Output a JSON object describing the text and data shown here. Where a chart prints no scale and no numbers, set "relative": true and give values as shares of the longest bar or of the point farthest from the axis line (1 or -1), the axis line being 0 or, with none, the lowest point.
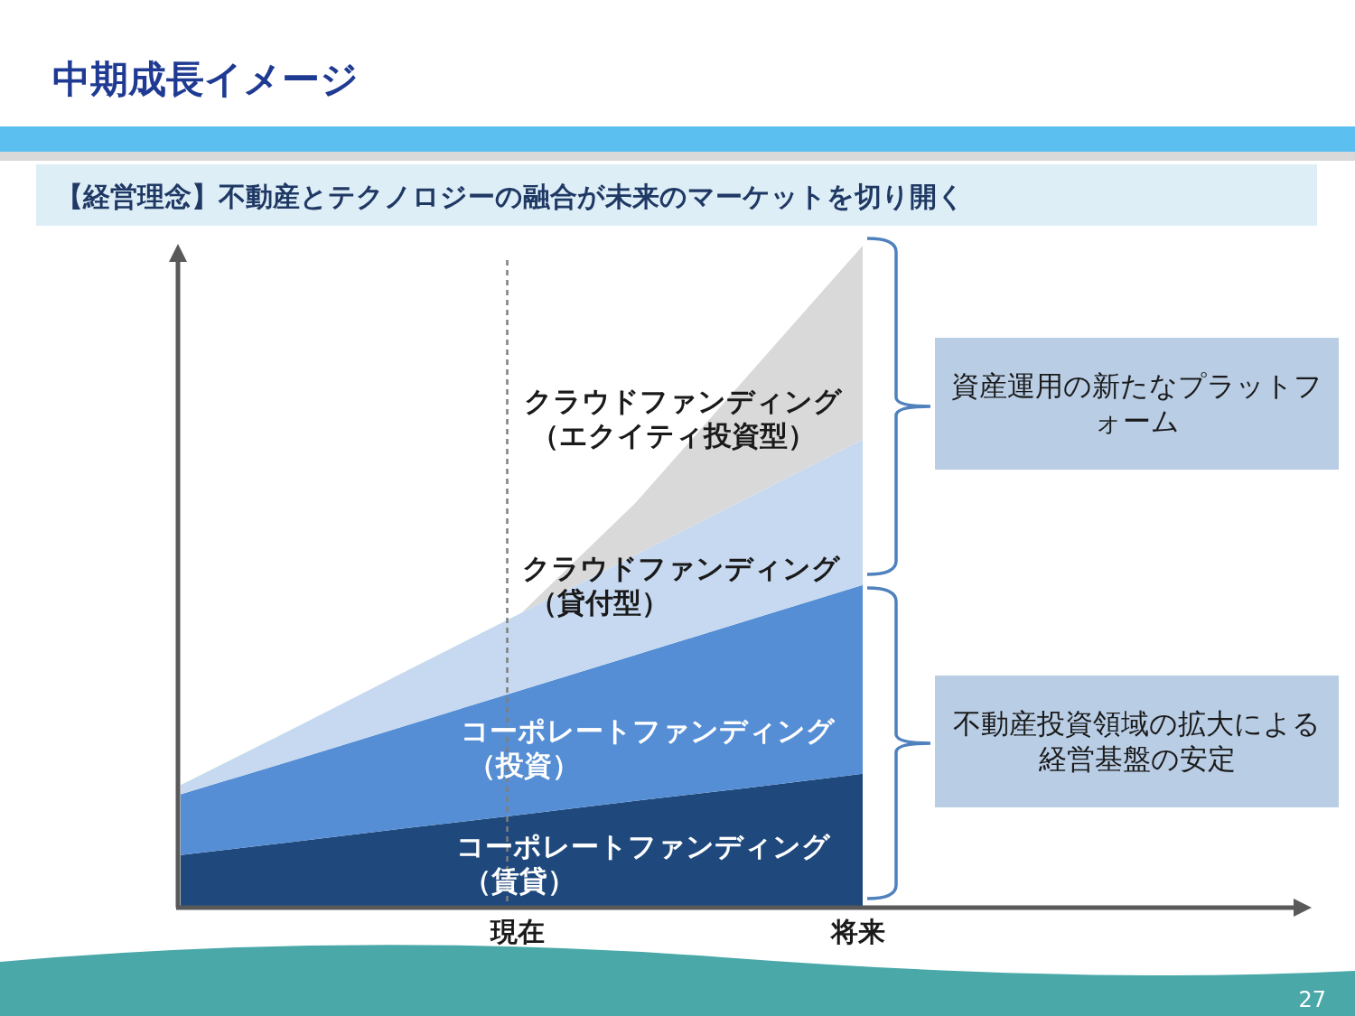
{
  "chart_data": {
    "type": "area",
    "title": "中期成長イメージ",
    "subtitle": "【経営理念】不動産とテクノロジーの融合が未来のマーケットを切り開く",
    "stacked": true,
    "relative": true,
    "legend": false,
    "categories": [
      null,
      null,
      null,
      "現在",
      null,
      null,
      "将来"
    ],
    "series": [
      {
        "name": "コーポレートファンディング（賃貸）",
        "color": "#1f497d",
        "values": [
          0.077,
          0.097,
          0.118,
          0.138,
          0.159,
          0.179,
          0.2
        ]
      },
      {
        "name": "コーポレートファンディング（投資）",
        "color": "#558ed5",
        "values": [
          0.092,
          0.124,
          0.156,
          0.189,
          0.221,
          0.254,
          0.286
        ]
      },
      {
        "name": "クラウドファンディング（貸付型）",
        "color": "#c6d9f0",
        "values": [
          0.014,
          0.048,
          0.083,
          0.117,
          0.151,
          0.186,
          0.22
        ]
      },
      {
        "name": "クラウドファンディング（エクイティ投資型）",
        "color": "#d9d9d9",
        "values": [
          0,
          0,
          0,
          0,
          0.079,
          0.186,
          0.294
        ]
      }
    ],
    "ref_lines": [
      {
        "axis": "x",
        "value": "現在",
        "line_style": "dashed",
        "color": "#7f7f7f"
      }
    ],
    "annotations": [
      "資産運用の新たなプラットフォーム",
      "不動産投資領域の拡大による経営基盤の安定",
      "27"
    ]
  }
}
